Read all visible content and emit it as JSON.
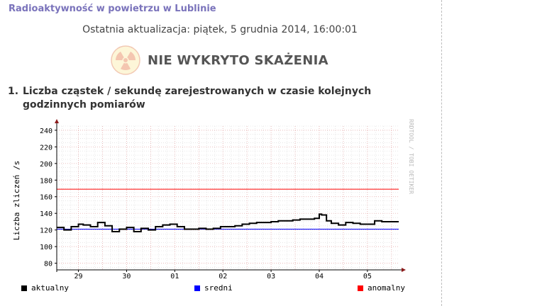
{
  "header": {
    "title": "Radioaktywność w powietrzu w Lublinie",
    "last_update": "Ostatnia aktualizacja: piątek, 5 grudnia 2014, 16:00:01",
    "status": "NIE WYKRYTO SKAŻENIA",
    "status_icon": "radiation-icon"
  },
  "section": {
    "number": "1.",
    "title": "Liczba cząstek / sekundę zarejestrowanych w czasie kolejnych godzinnych pomiarów"
  },
  "chart_data": {
    "type": "line",
    "ylabel": "Liczba zliczeń /s",
    "watermark": "RRDTOOL / TOBI OETIKER",
    "ylim": [
      72,
      245
    ],
    "yticks": [
      80,
      100,
      120,
      140,
      160,
      180,
      200,
      220,
      240
    ],
    "ytick_labels": [
      "80",
      "100",
      "120",
      "140",
      "160",
      "180",
      "200",
      "220",
      "240"
    ],
    "xlim": [
      -0.45,
      6.65
    ],
    "xticks": [
      0,
      1,
      2,
      3,
      4,
      5,
      6
    ],
    "xtick_labels": [
      "29",
      "30",
      "01",
      "02",
      "03",
      "04",
      "05"
    ],
    "grid": true,
    "series": [
      {
        "name": "aktualny",
        "color": "#000000",
        "x": [
          -0.45,
          -0.3,
          -0.15,
          0.0,
          0.1,
          0.25,
          0.4,
          0.55,
          0.7,
          0.85,
          1.0,
          1.15,
          1.3,
          1.45,
          1.6,
          1.75,
          1.9,
          2.05,
          2.2,
          2.35,
          2.5,
          2.65,
          2.8,
          2.95,
          3.1,
          3.25,
          3.4,
          3.55,
          3.7,
          3.85,
          4.0,
          4.15,
          4.3,
          4.45,
          4.6,
          4.75,
          4.9,
          5.0,
          5.05,
          5.15,
          5.25,
          5.4,
          5.55,
          5.7,
          5.85,
          6.0,
          6.15,
          6.3,
          6.45,
          6.65
        ],
        "values": [
          123,
          120,
          124,
          127,
          126,
          124,
          129,
          125,
          118,
          121,
          123,
          118,
          122,
          120,
          124,
          126,
          127,
          124,
          121,
          121,
          122,
          121,
          122,
          124,
          124,
          125,
          127,
          128,
          129,
          129,
          130,
          131,
          131,
          132,
          133,
          133,
          134,
          139,
          138,
          131,
          128,
          126,
          129,
          128,
          127,
          127,
          131,
          130,
          130,
          130
        ]
      },
      {
        "name": "sredni",
        "color": "#0000ff",
        "values": [
          121
        ]
      },
      {
        "name": "anomalny",
        "color": "#ff0000",
        "values": [
          169
        ]
      }
    ]
  },
  "legend": {
    "items": [
      {
        "label": "aktualny",
        "color": "#000000"
      },
      {
        "label": "sredni",
        "color": "#0000ff"
      },
      {
        "label": "anomalny",
        "color": "#ff0000"
      }
    ]
  }
}
